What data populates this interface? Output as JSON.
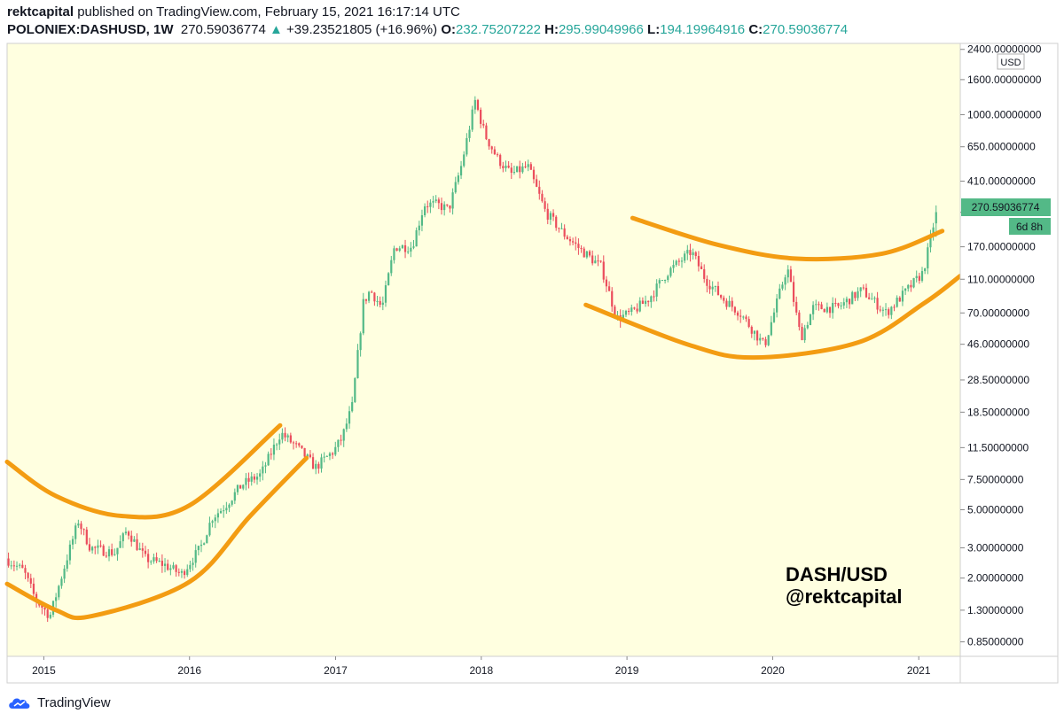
{
  "header": {
    "author": "rektcapital",
    "published_text": "published on TradingView.com, February 15, 2021 16:17:14 UTC",
    "symbol": "POLONIEX:DASHUSD, 1W",
    "last_price": "270.59036774",
    "change_arrow": "▲",
    "change": "+39.23521805 (+16.96%)",
    "open_label": "O:",
    "open": "232.75207222",
    "high_label": "H:",
    "high": "295.99049966",
    "low_label": "L:",
    "low": "194.19964916",
    "close_label": "C:",
    "close": "270.59036774"
  },
  "currency_label": "USD",
  "price_tag": "270.59036774",
  "countdown_tag": "6d 8h",
  "watermark": {
    "line1": "DASH/USD",
    "line2": "@rektcapital"
  },
  "footer": {
    "logo_icon": "tradingview-cloud-icon",
    "brand": "TradingView"
  },
  "colors": {
    "background": "#ffffe0",
    "up_candle": "#53b987",
    "down_candle": "#eb4d5c",
    "curve": "#f39c12",
    "tag": "#53b987"
  },
  "chart_data": {
    "type": "candlestick",
    "timeframe": "1W",
    "y_scale": "log",
    "ylim": [
      0.7,
      2600
    ],
    "y_ticks": [
      2400,
      1600,
      1000,
      650,
      410,
      270,
      170,
      110,
      70,
      46,
      28.5,
      18.5,
      11.5,
      7.5,
      5.0,
      3.0,
      2.0,
      1.3,
      0.85
    ],
    "y_tick_labels": [
      "2400.00000000",
      "1600.00000000",
      "1000.00000000",
      "650.00000000",
      "410.00000000",
      "270.00000000",
      "170.00000000",
      "110.00000000",
      "70.00000000",
      "46.00000000",
      "28.50000000",
      "18.50000000",
      "11.50000000",
      "7.50000000",
      "5.00000000",
      "3.00000000",
      "2.00000000",
      "1.30000000",
      "0.85000000"
    ],
    "x_range": [
      "2014-10-01",
      "2021-04-15"
    ],
    "x_ticks": [
      "2015-01-01",
      "2016-01-01",
      "2017-01-01",
      "2018-01-01",
      "2019-01-01",
      "2020-01-01",
      "2021-01-01"
    ],
    "x_tick_labels": [
      "2015",
      "2016",
      "2017",
      "2018",
      "2019",
      "2020",
      "2021"
    ],
    "price_path": [
      [
        "2014-10-01",
        2.6
      ],
      [
        "2014-11-15",
        2.2
      ],
      [
        "2014-12-15",
        1.5
      ],
      [
        "2015-01-20",
        1.2
      ],
      [
        "2015-03-01",
        2.5
      ],
      [
        "2015-04-01",
        4.3
      ],
      [
        "2015-05-01",
        3.0
      ],
      [
        "2015-07-01",
        2.8
      ],
      [
        "2015-08-01",
        3.8
      ],
      [
        "2015-09-15",
        2.6
      ],
      [
        "2015-11-01",
        2.4
      ],
      [
        "2015-12-15",
        2.1
      ],
      [
        "2016-02-01",
        3.0
      ],
      [
        "2016-03-01",
        4.5
      ],
      [
        "2016-04-01",
        5.2
      ],
      [
        "2016-05-15",
        7.0
      ],
      [
        "2016-07-01",
        8.0
      ],
      [
        "2016-08-20",
        14.0
      ],
      [
        "2016-10-01",
        11.5
      ],
      [
        "2016-11-15",
        8.8
      ],
      [
        "2016-12-31",
        11.0
      ],
      [
        "2017-01-20",
        13.0
      ],
      [
        "2017-02-15",
        20.0
      ],
      [
        "2017-03-15",
        80.0
      ],
      [
        "2017-04-01",
        95.0
      ],
      [
        "2017-05-01",
        75.0
      ],
      [
        "2017-06-01",
        170.0
      ],
      [
        "2017-07-15",
        170.0
      ],
      [
        "2017-08-15",
        300.0
      ],
      [
        "2017-09-15",
        300.0
      ],
      [
        "2017-10-15",
        280.0
      ],
      [
        "2017-11-15",
        500.0
      ],
      [
        "2017-12-20",
        1200.0
      ],
      [
        "2018-01-15",
        750.0
      ],
      [
        "2018-02-15",
        550.0
      ],
      [
        "2018-03-20",
        450.0
      ],
      [
        "2018-05-01",
        500.0
      ],
      [
        "2018-06-15",
        270.0
      ],
      [
        "2018-08-01",
        200.0
      ],
      [
        "2018-09-15",
        160.0
      ],
      [
        "2018-11-01",
        130.0
      ],
      [
        "2018-12-10",
        65.0
      ],
      [
        "2019-01-15",
        70.0
      ],
      [
        "2019-03-01",
        85.0
      ],
      [
        "2019-04-15",
        120.0
      ],
      [
        "2019-06-15",
        160.0
      ],
      [
        "2019-07-20",
        110.0
      ],
      [
        "2019-09-01",
        85.0
      ],
      [
        "2019-10-15",
        70.0
      ],
      [
        "2019-12-15",
        45.0
      ],
      [
        "2020-02-10",
        130.0
      ],
      [
        "2020-03-15",
        50.0
      ],
      [
        "2020-04-15",
        75.0
      ],
      [
        "2020-06-15",
        75.0
      ],
      [
        "2020-08-15",
        95.0
      ],
      [
        "2020-10-15",
        70.0
      ],
      [
        "2020-12-15",
        100.0
      ],
      [
        "2021-01-15",
        120.0
      ],
      [
        "2021-02-08",
        210.0
      ],
      [
        "2021-02-15",
        270.59
      ]
    ],
    "last_candle": {
      "open": 232.75207222,
      "high": 295.99049966,
      "low": 194.19964916,
      "close": 270.59036774
    },
    "annotations": [
      {
        "type": "curve",
        "name": "2015-2016 upper arc",
        "points": [
          [
            "2014-10-01",
            9.5
          ],
          [
            "2015-02-01",
            6.0
          ],
          [
            "2015-07-15",
            4.6
          ],
          [
            "2016-01-01",
            5.3
          ],
          [
            "2016-08-15",
            15.5
          ]
        ]
      },
      {
        "type": "curve",
        "name": "2015-2016 lower arc",
        "points": [
          [
            "2014-10-01",
            1.85
          ],
          [
            "2015-02-01",
            1.3
          ],
          [
            "2015-05-01",
            1.2
          ],
          [
            "2016-01-01",
            1.9
          ],
          [
            "2016-06-01",
            4.6
          ],
          [
            "2016-10-20",
            10.0
          ]
        ]
      },
      {
        "type": "curve",
        "name": "2019-2021 upper arc",
        "points": [
          [
            "2019-01-15",
            250.0
          ],
          [
            "2019-08-15",
            175.0
          ],
          [
            "2020-03-01",
            145.0
          ],
          [
            "2020-10-01",
            155.0
          ],
          [
            "2021-03-01",
            210.0
          ]
        ]
      },
      {
        "type": "curve",
        "name": "2019-2021 lower arc",
        "points": [
          [
            "2018-09-20",
            78.0
          ],
          [
            "2019-06-01",
            46.0
          ],
          [
            "2019-11-15",
            38.5
          ],
          [
            "2020-08-01",
            47.0
          ],
          [
            "2021-01-15",
            80.0
          ],
          [
            "2021-04-15",
            115.0
          ]
        ]
      }
    ]
  }
}
